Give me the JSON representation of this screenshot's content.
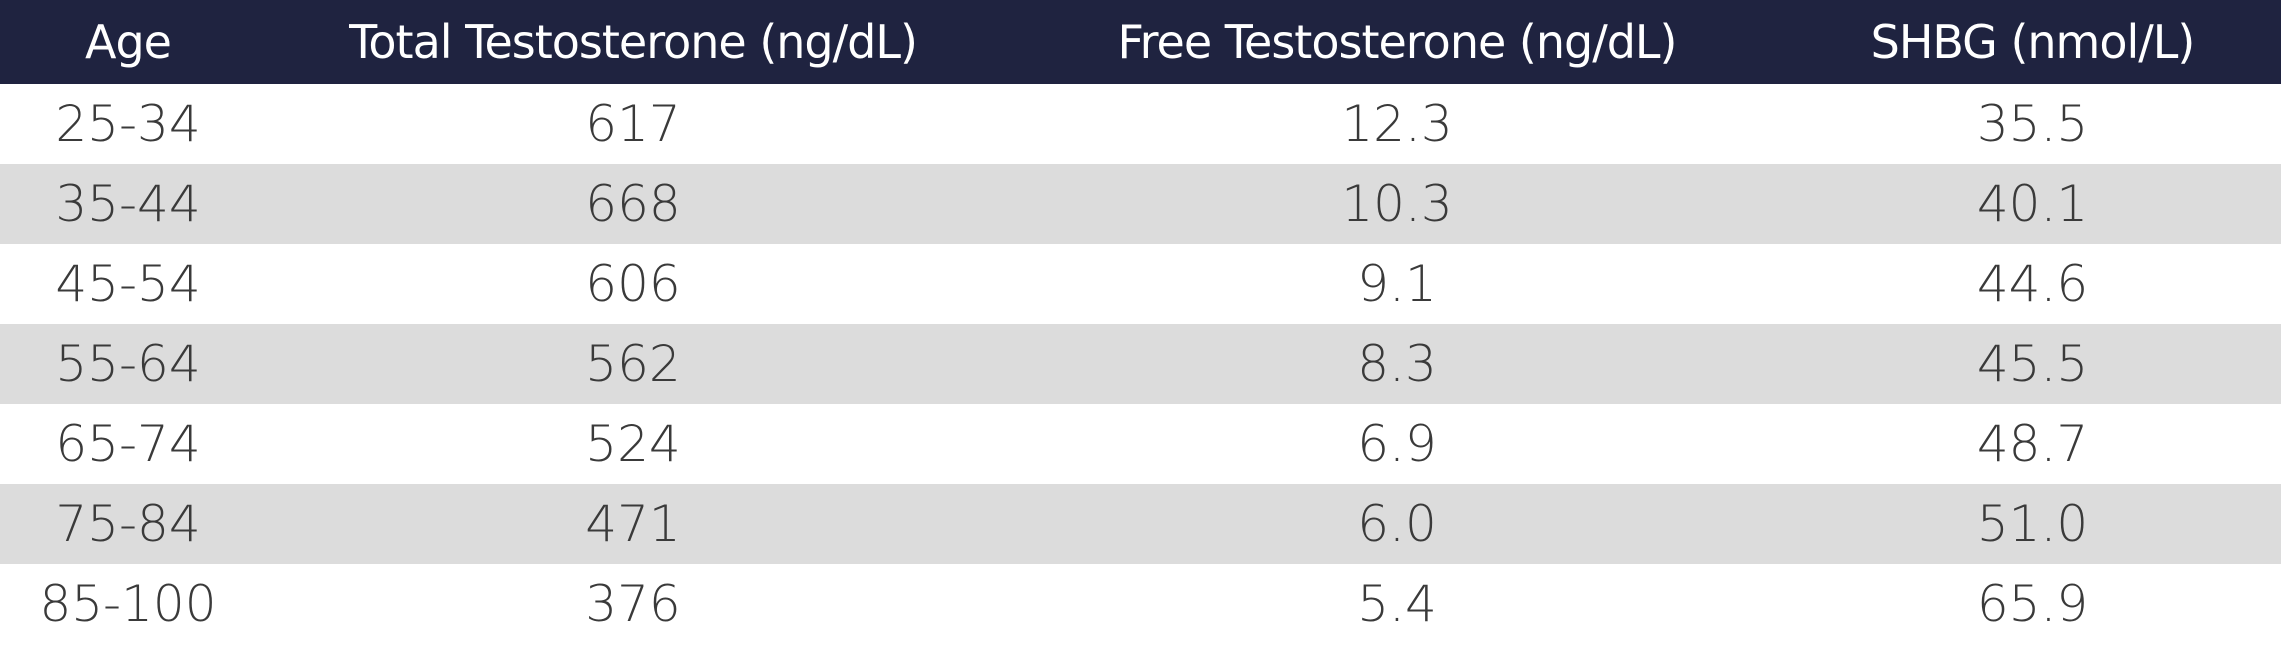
{
  "table": {
    "header": [
      "Age",
      "Total Testosterone (ng/dL)",
      "Free Testosterone (ng/dL)",
      "SHBG (nmol/L)"
    ],
    "rows": [
      [
        "25-34",
        "617",
        "12.3",
        "35.5"
      ],
      [
        "35-44",
        "668",
        "10.3",
        "40.1"
      ],
      [
        "45-54",
        "606",
        "9.1",
        "44.6"
      ],
      [
        "55-64",
        "562",
        "8.3",
        "45.5"
      ],
      [
        "65-74",
        "524",
        "6.9",
        "48.7"
      ],
      [
        "75-84",
        "471",
        "6.0",
        "51.0"
      ],
      [
        "85-100",
        "376",
        "5.4",
        "65.9"
      ]
    ]
  }
}
